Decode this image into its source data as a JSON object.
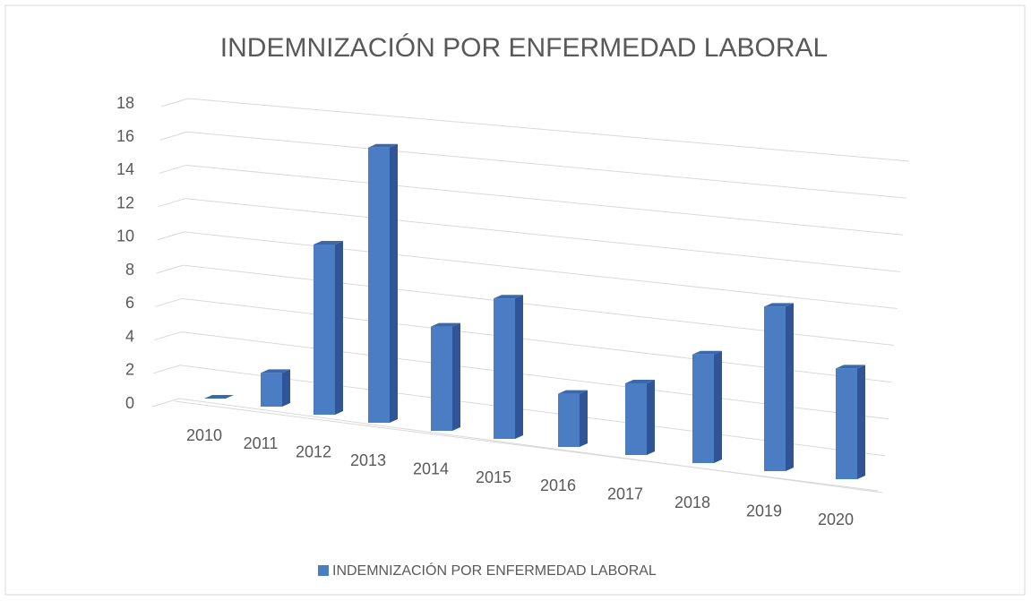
{
  "chart_data": {
    "type": "bar",
    "title": "INDEMNIZACIÓN POR ENFERMEDAD LABORAL",
    "categories": [
      "2010",
      "2011",
      "2012",
      "2013",
      "2014",
      "2015",
      "2016",
      "2017",
      "2018",
      "2019",
      "2020"
    ],
    "series": [
      {
        "name": "INDEMNIZACIÓN POR ENFERMEDAD LABORAL",
        "color": "#4a7dc4",
        "values": [
          0,
          2,
          10,
          16,
          6,
          8,
          3,
          4,
          6,
          9,
          6
        ]
      }
    ],
    "ylim": [
      0,
      18
    ],
    "yticks": [
      0,
      2,
      4,
      6,
      8,
      10,
      12,
      14,
      16,
      18
    ],
    "grid": true,
    "legend": "bottom"
  }
}
